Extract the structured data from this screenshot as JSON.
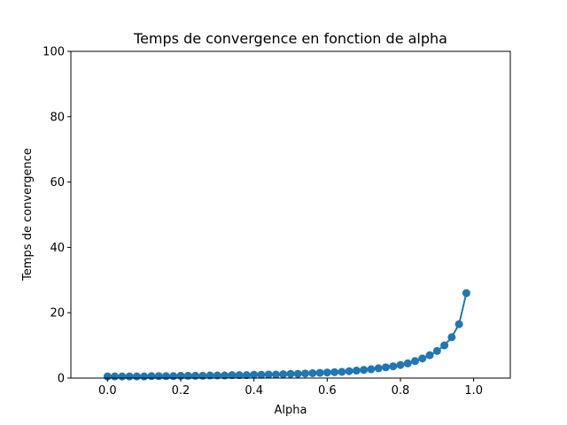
{
  "chart_data": {
    "type": "line",
    "title": "Temps de convergence en fonction de alpha",
    "xlabel": "Alpha",
    "ylabel": "Temps de convergence",
    "xlim": [
      -0.1,
      1.1
    ],
    "ylim": [
      0,
      100
    ],
    "xticks": [
      "0.0",
      "0.2",
      "0.4",
      "0.6",
      "0.8",
      "1.0"
    ],
    "xtick_values": [
      0.0,
      0.2,
      0.4,
      0.6,
      0.8,
      1.0
    ],
    "yticks": [
      "0",
      "20",
      "40",
      "60",
      "80",
      "100"
    ],
    "ytick_values": [
      0,
      20,
      40,
      60,
      80,
      100
    ],
    "grid": false,
    "color": "#1f77b4",
    "marker": "circle",
    "series": [
      {
        "x": [
          0.0,
          0.02,
          0.04,
          0.06,
          0.08,
          0.1,
          0.12,
          0.14,
          0.16,
          0.18,
          0.2,
          0.22,
          0.24,
          0.26,
          0.28,
          0.3,
          0.32,
          0.34,
          0.36,
          0.38,
          0.4,
          0.42,
          0.44,
          0.46,
          0.48,
          0.5,
          0.52,
          0.54,
          0.56,
          0.58,
          0.6,
          0.62,
          0.64,
          0.66,
          0.68,
          0.7,
          0.72,
          0.74,
          0.76,
          0.78,
          0.8,
          0.82,
          0.84,
          0.86,
          0.88,
          0.9,
          0.92,
          0.94,
          0.96,
          0.98
        ],
        "y": [
          0.5,
          0.5,
          0.5,
          0.5,
          0.5,
          0.5,
          0.6,
          0.6,
          0.6,
          0.6,
          0.7,
          0.7,
          0.7,
          0.7,
          0.8,
          0.8,
          0.8,
          0.9,
          0.9,
          0.9,
          1.0,
          1.0,
          1.1,
          1.1,
          1.2,
          1.3,
          1.3,
          1.4,
          1.5,
          1.6,
          1.7,
          1.8,
          1.9,
          2.1,
          2.3,
          2.5,
          2.7,
          3.0,
          3.3,
          3.6,
          4.0,
          4.5,
          5.2,
          6.0,
          7.0,
          8.3,
          10.0,
          12.5,
          16.5,
          26.0
        ]
      }
    ]
  }
}
